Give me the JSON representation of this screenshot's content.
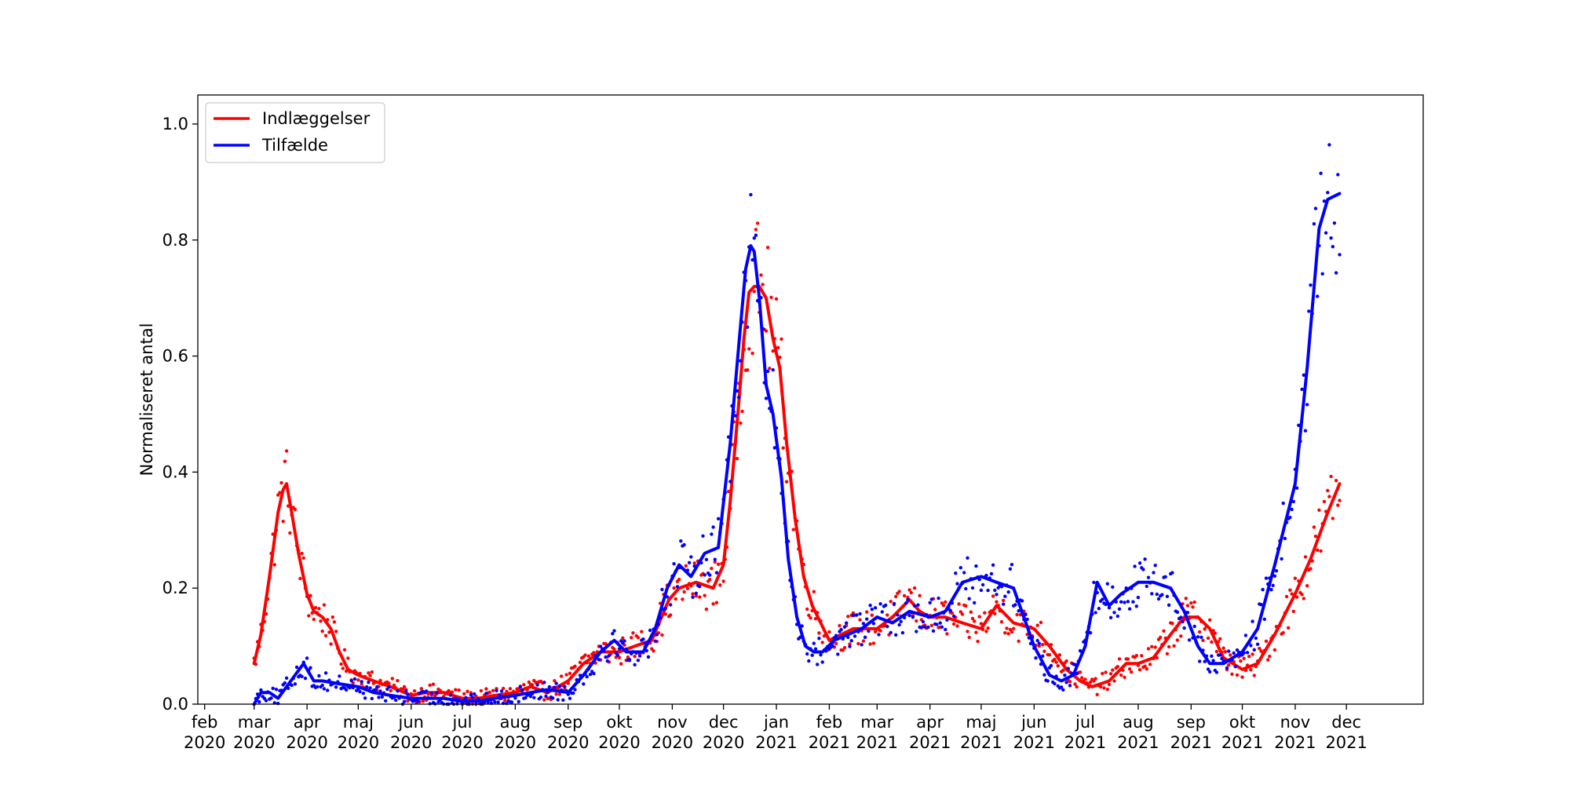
{
  "chart_data": {
    "type": "line",
    "title": "",
    "xlabel": "",
    "ylabel": "Normaliseret antal",
    "ylim": [
      0,
      1.05
    ],
    "xlim": [
      "2020-01-28",
      "2022-01-15"
    ],
    "grid": false,
    "legend_position": "top-left",
    "x_ticks": [
      {
        "date": "2020-02-01",
        "month": "feb",
        "year": "2020"
      },
      {
        "date": "2020-03-01",
        "month": "mar",
        "year": "2020"
      },
      {
        "date": "2020-04-01",
        "month": "apr",
        "year": "2020"
      },
      {
        "date": "2020-05-01",
        "month": "maj",
        "year": "2020"
      },
      {
        "date": "2020-06-01",
        "month": "jun",
        "year": "2020"
      },
      {
        "date": "2020-07-01",
        "month": "jul",
        "year": "2020"
      },
      {
        "date": "2020-08-01",
        "month": "aug",
        "year": "2020"
      },
      {
        "date": "2020-09-01",
        "month": "sep",
        "year": "2020"
      },
      {
        "date": "2020-10-01",
        "month": "okt",
        "year": "2020"
      },
      {
        "date": "2020-11-01",
        "month": "nov",
        "year": "2020"
      },
      {
        "date": "2020-12-01",
        "month": "dec",
        "year": "2020"
      },
      {
        "date": "2021-01-01",
        "month": "jan",
        "year": "2021"
      },
      {
        "date": "2021-02-01",
        "month": "feb",
        "year": "2021"
      },
      {
        "date": "2021-03-01",
        "month": "mar",
        "year": "2021"
      },
      {
        "date": "2021-04-01",
        "month": "apr",
        "year": "2021"
      },
      {
        "date": "2021-05-01",
        "month": "maj",
        "year": "2021"
      },
      {
        "date": "2021-06-01",
        "month": "jun",
        "year": "2021"
      },
      {
        "date": "2021-07-01",
        "month": "jul",
        "year": "2021"
      },
      {
        "date": "2021-08-01",
        "month": "aug",
        "year": "2021"
      },
      {
        "date": "2021-09-01",
        "month": "sep",
        "year": "2021"
      },
      {
        "date": "2021-10-01",
        "month": "okt",
        "year": "2021"
      },
      {
        "date": "2021-11-01",
        "month": "nov",
        "year": "2021"
      },
      {
        "date": "2021-12-01",
        "month": "dec",
        "year": "2021"
      }
    ],
    "y_ticks": [
      0.0,
      0.2,
      0.4,
      0.6,
      0.8,
      1.0
    ],
    "y_tick_labels": [
      "0.0",
      "0.2",
      "0.4",
      "0.6",
      "0.8",
      "1.0"
    ],
    "series": [
      {
        "name": "Indlæggelser",
        "color": "#ff0000",
        "x": [
          "2020-03-01",
          "2020-03-05",
          "2020-03-10",
          "2020-03-15",
          "2020-03-18",
          "2020-03-20",
          "2020-03-23",
          "2020-03-27",
          "2020-04-01",
          "2020-04-05",
          "2020-04-10",
          "2020-04-15",
          "2020-04-20",
          "2020-04-25",
          "2020-05-01",
          "2020-05-10",
          "2020-05-20",
          "2020-06-01",
          "2020-06-10",
          "2020-06-20",
          "2020-07-01",
          "2020-07-10",
          "2020-07-20",
          "2020-08-01",
          "2020-08-10",
          "2020-08-20",
          "2020-09-01",
          "2020-09-10",
          "2020-09-20",
          "2020-10-01",
          "2020-10-10",
          "2020-10-20",
          "2020-10-30",
          "2020-11-05",
          "2020-11-15",
          "2020-11-25",
          "2020-12-01",
          "2020-12-05",
          "2020-12-10",
          "2020-12-13",
          "2020-12-16",
          "2020-12-19",
          "2020-12-22",
          "2020-12-26",
          "2020-12-30",
          "2021-01-03",
          "2021-01-07",
          "2021-01-12",
          "2021-01-17",
          "2021-01-22",
          "2021-01-27",
          "2021-02-01",
          "2021-02-08",
          "2021-02-15",
          "2021-02-22",
          "2021-03-01",
          "2021-03-10",
          "2021-03-20",
          "2021-03-26",
          "2021-04-01",
          "2021-04-10",
          "2021-04-20",
          "2021-05-01",
          "2021-05-10",
          "2021-05-20",
          "2021-06-01",
          "2021-06-10",
          "2021-06-20",
          "2021-06-28",
          "2021-07-05",
          "2021-07-15",
          "2021-07-25",
          "2021-08-01",
          "2021-08-10",
          "2021-08-20",
          "2021-08-28",
          "2021-09-05",
          "2021-09-12",
          "2021-09-20",
          "2021-10-01",
          "2021-10-10",
          "2021-10-20",
          "2021-11-01",
          "2021-11-10",
          "2021-11-20",
          "2021-11-27"
        ],
        "values": [
          0.07,
          0.12,
          0.22,
          0.33,
          0.37,
          0.38,
          0.33,
          0.26,
          0.19,
          0.16,
          0.15,
          0.13,
          0.09,
          0.06,
          0.05,
          0.04,
          0.03,
          0.015,
          0.02,
          0.02,
          0.01,
          0.01,
          0.015,
          0.02,
          0.03,
          0.02,
          0.04,
          0.07,
          0.09,
          0.09,
          0.1,
          0.11,
          0.18,
          0.2,
          0.21,
          0.2,
          0.24,
          0.35,
          0.52,
          0.63,
          0.71,
          0.72,
          0.72,
          0.7,
          0.63,
          0.58,
          0.45,
          0.32,
          0.22,
          0.17,
          0.14,
          0.11,
          0.12,
          0.13,
          0.13,
          0.13,
          0.15,
          0.18,
          0.16,
          0.15,
          0.15,
          0.14,
          0.13,
          0.17,
          0.14,
          0.13,
          0.1,
          0.06,
          0.04,
          0.03,
          0.04,
          0.07,
          0.07,
          0.08,
          0.12,
          0.15,
          0.15,
          0.13,
          0.08,
          0.06,
          0.07,
          0.12,
          0.19,
          0.25,
          0.33,
          0.38
        ]
      },
      {
        "name": "Tilfælde",
        "color": "#0000ff",
        "x": [
          "2020-03-01",
          "2020-03-05",
          "2020-03-10",
          "2020-03-15",
          "2020-03-20",
          "2020-03-25",
          "2020-03-30",
          "2020-04-05",
          "2020-04-10",
          "2020-04-20",
          "2020-05-01",
          "2020-05-10",
          "2020-05-20",
          "2020-06-01",
          "2020-06-10",
          "2020-06-20",
          "2020-07-01",
          "2020-07-10",
          "2020-07-20",
          "2020-08-01",
          "2020-08-10",
          "2020-08-20",
          "2020-09-01",
          "2020-09-10",
          "2020-09-20",
          "2020-09-28",
          "2020-10-05",
          "2020-10-15",
          "2020-10-22",
          "2020-10-29",
          "2020-11-05",
          "2020-11-12",
          "2020-11-20",
          "2020-11-28",
          "2020-12-05",
          "2020-12-10",
          "2020-12-14",
          "2020-12-17",
          "2020-12-19",
          "2020-12-22",
          "2020-12-26",
          "2020-12-30",
          "2021-01-04",
          "2021-01-08",
          "2021-01-13",
          "2021-01-18",
          "2021-01-23",
          "2021-01-28",
          "2021-02-04",
          "2021-02-12",
          "2021-02-20",
          "2021-03-01",
          "2021-03-10",
          "2021-03-20",
          "2021-04-01",
          "2021-04-10",
          "2021-04-20",
          "2021-05-01",
          "2021-05-10",
          "2021-05-20",
          "2021-06-01",
          "2021-06-10",
          "2021-06-17",
          "2021-06-24",
          "2021-07-01",
          "2021-07-08",
          "2021-07-15",
          "2021-07-22",
          "2021-08-01",
          "2021-08-10",
          "2021-08-20",
          "2021-08-28",
          "2021-09-05",
          "2021-09-12",
          "2021-09-20",
          "2021-10-01",
          "2021-10-10",
          "2021-10-20",
          "2021-11-01",
          "2021-11-08",
          "2021-11-15",
          "2021-11-20",
          "2021-11-27"
        ],
        "values": [
          0.0,
          0.02,
          0.02,
          0.01,
          0.03,
          0.05,
          0.07,
          0.04,
          0.04,
          0.035,
          0.03,
          0.02,
          0.015,
          0.01,
          0.01,
          0.01,
          0.005,
          0.005,
          0.01,
          0.015,
          0.02,
          0.025,
          0.02,
          0.05,
          0.09,
          0.11,
          0.09,
          0.09,
          0.13,
          0.2,
          0.24,
          0.22,
          0.26,
          0.27,
          0.45,
          0.62,
          0.75,
          0.79,
          0.78,
          0.7,
          0.55,
          0.5,
          0.39,
          0.25,
          0.15,
          0.1,
          0.09,
          0.09,
          0.11,
          0.12,
          0.13,
          0.15,
          0.14,
          0.16,
          0.15,
          0.16,
          0.21,
          0.22,
          0.21,
          0.2,
          0.1,
          0.05,
          0.04,
          0.05,
          0.1,
          0.21,
          0.17,
          0.19,
          0.21,
          0.21,
          0.2,
          0.16,
          0.1,
          0.07,
          0.07,
          0.09,
          0.13,
          0.24,
          0.38,
          0.58,
          0.82,
          0.87,
          0.88
        ]
      }
    ]
  }
}
